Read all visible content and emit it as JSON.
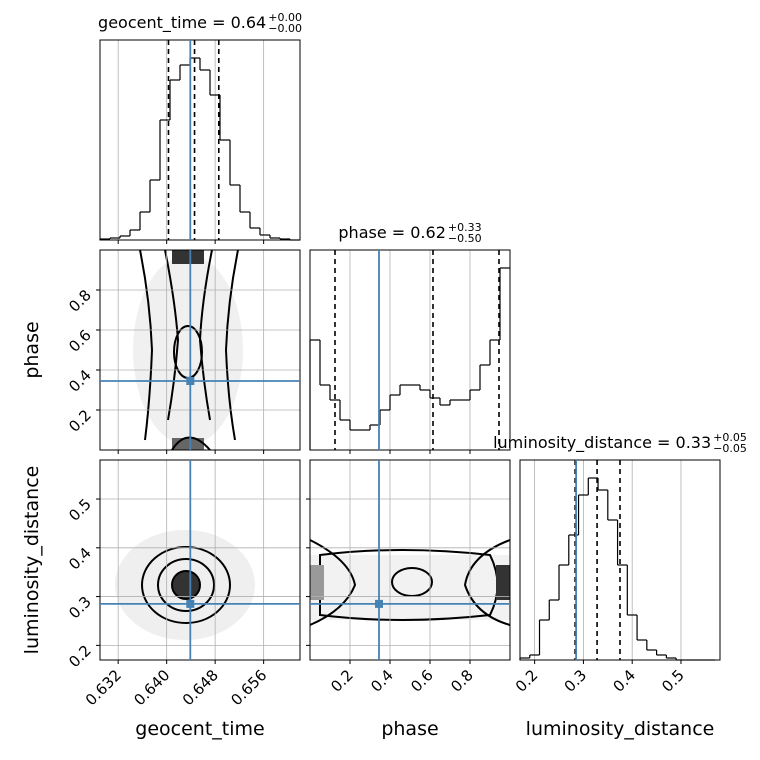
{
  "chart_data": {
    "type": "corner",
    "truth_color": "#4682b4",
    "line_color": "#000000",
    "grid": true,
    "parameters": [
      {
        "label": "geocent_time",
        "title": "geocent_time = 0.64",
        "title_plus": "+0.00",
        "title_minus": "−0.00",
        "lim": [
          0.629,
          0.662
        ],
        "ticks": [
          0.632,
          {
            "value": 0.64,
            "label": "0.640"
          },
          0.648,
          0.656
        ],
        "truth": 0.6439,
        "quantiles": [
          0.6403,
          0.6446,
          0.6486
        ],
        "bins": [
          0.629,
          0.63065,
          0.6323,
          0.63395,
          0.6356,
          0.63725,
          0.6389,
          0.64055,
          0.6422,
          0.64385,
          0.6455,
          0.64715,
          0.6488,
          0.65045,
          0.6521,
          0.65375,
          0.6554,
          0.65705,
          0.6587,
          0.66035,
          0.662
        ],
        "counts": [
          1,
          2,
          4,
          10,
          28,
          60,
          120,
          160,
          175,
          182,
          170,
          145,
          100,
          55,
          28,
          12,
          5,
          2,
          1,
          0
        ],
        "count_lim": [
          0,
          200
        ]
      },
      {
        "label": "phase",
        "title": "phase = 0.62",
        "title_plus": "+0.33",
        "title_minus": "−0.50",
        "lim": [
          0,
          1.0
        ],
        "ticks": [
          0.2,
          0.4,
          0.6,
          0.8
        ],
        "truth": 0.345,
        "quantiles": [
          0.125,
          0.615,
          0.945
        ],
        "bins": [
          0,
          0.05,
          0.1,
          0.15,
          0.2,
          0.25,
          0.3,
          0.35,
          0.4,
          0.45,
          0.5,
          0.55,
          0.6,
          0.65,
          0.7,
          0.75,
          0.8,
          0.85,
          0.9,
          0.95,
          1.0
        ],
        "counts": [
          110,
          65,
          50,
          30,
          20,
          20,
          25,
          40,
          55,
          65,
          65,
          60,
          52,
          45,
          50,
          50,
          60,
          85,
          110,
          182
        ],
        "count_lim": [
          0,
          200
        ]
      },
      {
        "label": "luminosity_distance",
        "title": "luminosity_distance = 0.33",
        "title_plus": "+0.05",
        "title_minus": "−0.05",
        "lim": [
          0.17,
          0.58
        ],
        "ticks": [
          0.2,
          0.3,
          0.4,
          0.5
        ],
        "truth": 0.285,
        "quantiles": [
          0.283,
          0.328,
          0.375
        ],
        "bins": [
          0.17,
          0.19,
          0.21,
          0.23,
          0.25,
          0.27,
          0.29,
          0.31,
          0.33,
          0.35,
          0.37,
          0.39,
          0.41,
          0.43,
          0.45,
          0.47,
          0.49,
          0.51,
          0.53,
          0.55,
          0.57
        ],
        "counts": [
          2,
          5,
          40,
          60,
          95,
          125,
          165,
          182,
          170,
          140,
          95,
          45,
          20,
          10,
          5,
          2,
          0,
          0,
          0,
          0
        ],
        "count_lim": [
          0,
          200
        ]
      }
    ]
  }
}
